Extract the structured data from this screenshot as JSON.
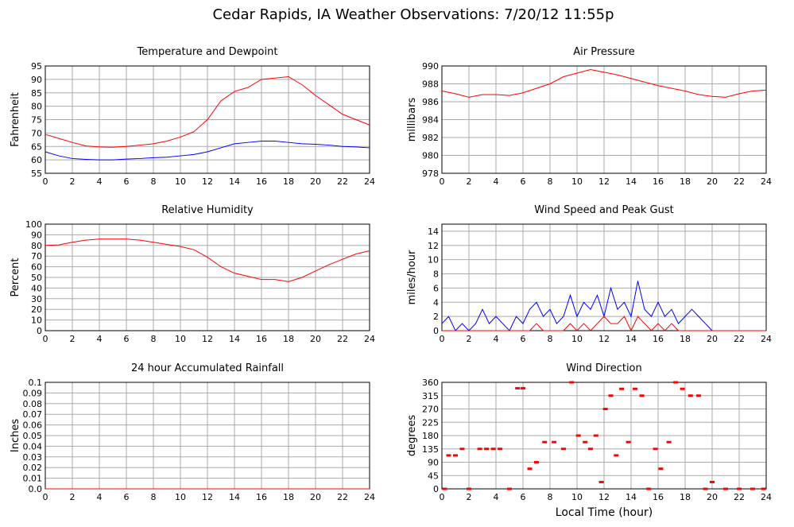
{
  "title": "Cedar Rapids, IA Weather Observations: 7/20/12 11:55p",
  "chart_data": [
    {
      "type": "line",
      "title": "Temperature and Dewpoint",
      "ylabel": "Fahrenheit",
      "x": [
        0,
        1,
        2,
        3,
        4,
        5,
        6,
        7,
        8,
        9,
        10,
        11,
        12,
        13,
        14,
        15,
        16,
        17,
        18,
        19,
        20,
        21,
        22,
        23,
        24
      ],
      "series": [
        {
          "color": "#ff0000",
          "values": [
            69.5,
            68,
            66.5,
            65.2,
            64.8,
            64.7,
            65,
            65.5,
            66,
            67,
            68.5,
            70.5,
            75,
            82,
            85.5,
            87,
            90,
            90.5,
            91,
            88,
            84,
            80.5,
            77,
            75,
            73
          ]
        },
        {
          "color": "#0000ff",
          "values": [
            63,
            61.5,
            60.5,
            60.2,
            60,
            60,
            60.3,
            60.5,
            60.8,
            61,
            61.5,
            62,
            63,
            64.5,
            66,
            66.5,
            67,
            67,
            66.5,
            66,
            65.8,
            65.5,
            65,
            64.8,
            64.5
          ]
        }
      ],
      "xlim": [
        0,
        24
      ],
      "xticks": [
        0,
        2,
        4,
        6,
        8,
        10,
        12,
        14,
        16,
        18,
        20,
        22,
        24
      ],
      "ylim": [
        55,
        95
      ],
      "yticks": [
        55,
        60,
        65,
        70,
        75,
        80,
        85,
        90,
        95
      ],
      "grid": true
    },
    {
      "type": "line",
      "title": "Air Pressure",
      "ylabel": "millibars",
      "x": [
        0,
        1,
        2,
        3,
        4,
        5,
        6,
        7,
        8,
        9,
        10,
        11,
        12,
        13,
        14,
        15,
        16,
        17,
        18,
        19,
        20,
        21,
        22,
        23,
        24
      ],
      "series": [
        {
          "color": "#ff0000",
          "values": [
            987.2,
            986.9,
            986.5,
            986.8,
            986.8,
            986.7,
            987,
            987.5,
            988,
            988.8,
            989.2,
            989.6,
            989.3,
            989,
            988.6,
            988.2,
            987.8,
            987.5,
            987.2,
            986.8,
            986.6,
            986.5,
            986.9,
            987.2,
            987.3
          ]
        }
      ],
      "xlim": [
        0,
        24
      ],
      "xticks": [
        0,
        2,
        4,
        6,
        8,
        10,
        12,
        14,
        16,
        18,
        20,
        22,
        24
      ],
      "ylim": [
        978,
        990
      ],
      "yticks": [
        978,
        980,
        982,
        984,
        986,
        988,
        990
      ],
      "grid": true
    },
    {
      "type": "line",
      "title": "Relative Humidity",
      "ylabel": "Percent",
      "x": [
        0,
        1,
        2,
        3,
        4,
        5,
        6,
        7,
        8,
        9,
        10,
        11,
        12,
        13,
        14,
        15,
        16,
        17,
        18,
        19,
        20,
        21,
        22,
        23,
        24
      ],
      "series": [
        {
          "color": "#ff0000",
          "values": [
            80,
            80.5,
            83,
            85,
            86,
            86,
            86,
            85,
            83,
            81,
            79,
            76,
            69,
            60,
            54,
            51,
            48,
            48,
            46,
            50,
            56,
            62,
            67,
            72,
            75
          ]
        }
      ],
      "xlim": [
        0,
        24
      ],
      "xticks": [
        0,
        2,
        4,
        6,
        8,
        10,
        12,
        14,
        16,
        18,
        20,
        22,
        24
      ],
      "ylim": [
        0,
        100
      ],
      "yticks": [
        0,
        10,
        20,
        30,
        40,
        50,
        60,
        70,
        80,
        90,
        100
      ],
      "grid": true
    },
    {
      "type": "line",
      "title": "Wind Speed and Peak Gust",
      "ylabel": "miles/hour",
      "x": [
        0,
        0.5,
        1,
        1.5,
        2,
        2.5,
        3,
        3.5,
        4,
        4.5,
        5,
        5.5,
        6,
        6.5,
        7,
        7.5,
        8,
        8.5,
        9,
        9.5,
        10,
        10.5,
        11,
        11.5,
        12,
        12.5,
        13,
        13.5,
        14,
        14.5,
        15,
        15.5,
        16,
        16.5,
        17,
        17.5,
        18,
        18.5,
        19,
        19.5,
        20,
        20.5,
        21,
        21.5,
        22,
        22.5,
        23,
        23.5,
        24
      ],
      "series": [
        {
          "color": "#0000ff",
          "values": [
            1,
            2,
            0,
            1,
            0,
            1,
            3,
            1,
            2,
            1,
            0,
            2,
            1,
            3,
            4,
            2,
            3,
            1,
            2,
            5,
            2,
            4,
            3,
            5,
            2,
            6,
            3,
            4,
            2,
            7,
            3,
            2,
            4,
            2,
            3,
            1,
            2,
            3,
            2,
            1,
            0,
            0,
            0,
            0,
            0,
            0,
            0,
            0,
            0
          ]
        },
        {
          "color": "#ff0000",
          "values": [
            0,
            0,
            0,
            0,
            0,
            0,
            0,
            0,
            0,
            0,
            0,
            0,
            0,
            0,
            1,
            0,
            0,
            0,
            0,
            1,
            0,
            1,
            0,
            1,
            2,
            1,
            1,
            2,
            0,
            2,
            1,
            0,
            1,
            0,
            1,
            0,
            0,
            0,
            0,
            0,
            0,
            0,
            0,
            0,
            0,
            0,
            0,
            0,
            0
          ]
        }
      ],
      "xlim": [
        0,
        24
      ],
      "xticks": [
        0,
        2,
        4,
        6,
        8,
        10,
        12,
        14,
        16,
        18,
        20,
        22,
        24
      ],
      "ylim": [
        0,
        15
      ],
      "yticks": [
        0,
        2,
        4,
        6,
        8,
        10,
        12,
        14
      ],
      "grid": true
    },
    {
      "type": "line",
      "title": "24 hour Accumulated Rainfall",
      "ylabel": "Inches",
      "x": [
        0,
        24
      ],
      "series": [
        {
          "color": "#ff0000",
          "values": [
            0,
            0
          ]
        }
      ],
      "xlim": [
        0,
        24
      ],
      "xticks": [
        0,
        2,
        4,
        6,
        8,
        10,
        12,
        14,
        16,
        18,
        20,
        22,
        24
      ],
      "ylim": [
        0,
        0.1
      ],
      "yticks": [
        {
          "value": 0,
          "label": "0.0"
        },
        0.01,
        0.02,
        0.03,
        0.04,
        0.05,
        0.06,
        0.07,
        0.08,
        0.09,
        0.1
      ],
      "grid": true
    },
    {
      "type": "scatter",
      "title": "Wind Direction",
      "ylabel": "degrees",
      "xlabel": "Local Time (hour)",
      "x": [
        0.2,
        0.5,
        1,
        1.5,
        2,
        2.8,
        3.3,
        3.8,
        4.3,
        5,
        5.6,
        6,
        6.5,
        7,
        7.6,
        8.3,
        9,
        9.6,
        10.1,
        10.6,
        11,
        11.4,
        11.8,
        12.1,
        12.5,
        12.9,
        13.3,
        13.8,
        14.3,
        14.8,
        15.3,
        15.8,
        16.2,
        16.8,
        17.3,
        17.8,
        18.4,
        19,
        19.5,
        20,
        21,
        22,
        23,
        23.8
      ],
      "series": [
        {
          "color": "#ff0000",
          "values": [
            0,
            113,
            113,
            135,
            0,
            135,
            135,
            135,
            135,
            0,
            340,
            340,
            68,
            90,
            158,
            158,
            135,
            360,
            180,
            158,
            135,
            180,
            23,
            270,
            315,
            113,
            338,
            158,
            338,
            315,
            0,
            135,
            68,
            158,
            360,
            338,
            315,
            315,
            0,
            23,
            0,
            0,
            0,
            0
          ]
        }
      ],
      "xlim": [
        0,
        24
      ],
      "xticks": [
        0,
        2,
        4,
        6,
        8,
        10,
        12,
        14,
        16,
        18,
        20,
        22,
        24
      ],
      "ylim": [
        0,
        360
      ],
      "yticks": [
        0,
        45,
        90,
        135,
        180,
        225,
        270,
        315,
        360
      ],
      "grid": true
    }
  ]
}
